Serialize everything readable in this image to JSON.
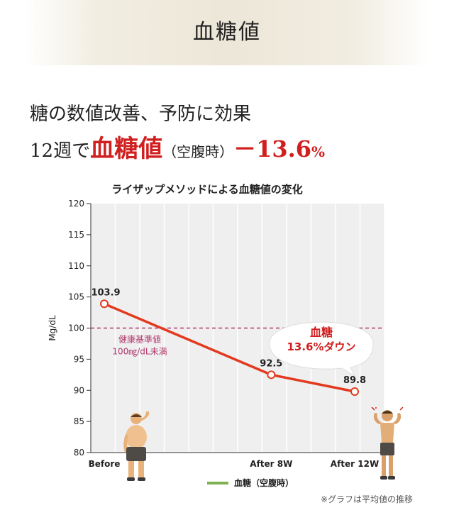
{
  "header": {
    "title": "血糖値"
  },
  "headline": {
    "line1": "糖の数値改善、予防に効果",
    "line2_prefix": "12週で",
    "line2_emphasis": "血糖値",
    "line2_paren": "（空腹時）",
    "line2_delta": "－13.6",
    "line2_unit": "%"
  },
  "colors": {
    "line": "#e23a1f",
    "emphasis": "#d11f1f",
    "threshold": "#b0386a",
    "legend": "#7fb152",
    "plot_bg": "#efefef"
  },
  "chart_data": {
    "type": "line",
    "title": "ライザップメソッドによる血糖値の変化",
    "ylabel": "Mg/dL",
    "xlabel": "",
    "ylim": [
      80,
      120
    ],
    "yticks": [
      80,
      85,
      90,
      95,
      100,
      105,
      110,
      115,
      120
    ],
    "categories": [
      "Before",
      "After 8W",
      "After 12W"
    ],
    "x": [
      0,
      8,
      12
    ],
    "series": [
      {
        "name": "血糖（空腹時）",
        "values": [
          103.9,
          92.5,
          89.8
        ],
        "labels": [
          "103.9",
          "92.5",
          "89.8"
        ]
      }
    ],
    "threshold": {
      "value": 100,
      "label_line1": "健康基準値",
      "label_line2": "100㎎/dL未満"
    },
    "callout": {
      "line1": "血糖",
      "line2": "13.6%ダウン"
    },
    "grid": true,
    "legend": "bottom"
  },
  "footnote": "※グラフは平均値の推移",
  "icons": {
    "before": "man-before-icon",
    "after": "man-after-icon"
  }
}
